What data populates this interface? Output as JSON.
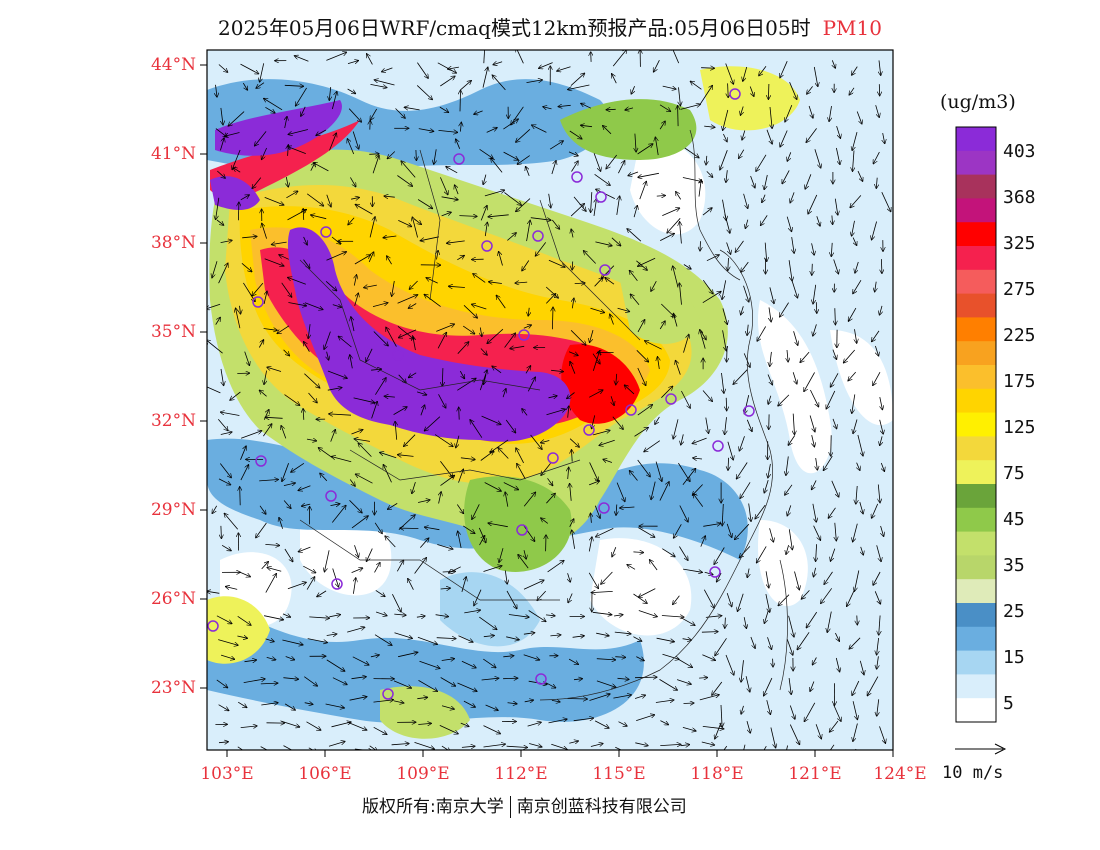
{
  "title": {
    "main": "2025年05月06日WRF/cmaq模式12km预报产品:05月06日05时",
    "pollutant": "PM10"
  },
  "axes": {
    "lat_labels": [
      "44°N",
      "41°N",
      "38°N",
      "35°N",
      "32°N",
      "29°N",
      "26°N",
      "23°N"
    ],
    "lon_labels": [
      "103°E",
      "106°E",
      "109°E",
      "112°E",
      "115°E",
      "118°E",
      "121°E",
      "124°E"
    ]
  },
  "legend": {
    "unit": "(ug/m3)",
    "levels": [
      "403",
      "368",
      "325",
      "275",
      "225",
      "175",
      "125",
      "75",
      "45",
      "35",
      "25",
      "15",
      "5"
    ],
    "colors": [
      "#8b2bd8",
      "#9c35c4",
      "#a8325c",
      "#c3137a",
      "#ff0000",
      "#f5214e",
      "#f55c5c",
      "#e8512b",
      "#ff7f00",
      "#f8a21f",
      "#fbbf2c",
      "#ffd400",
      "#fff000",
      "#f3d83b",
      "#eef25a",
      "#6aa43a",
      "#8fc94a",
      "#c3e06b",
      "#b8d66a",
      "#dfebb9",
      "#4a8fc6",
      "#6aaee0",
      "#a7d6f2",
      "#d9eefb",
      "#ffffff"
    ]
  },
  "wind_scale": {
    "label": "10 m/s"
  },
  "copyright": {
    "left": "版权所有:南京大学",
    "right": "南京创蓝科技有限公司"
  },
  "palette": {
    "accent_red": "#e8323c"
  }
}
